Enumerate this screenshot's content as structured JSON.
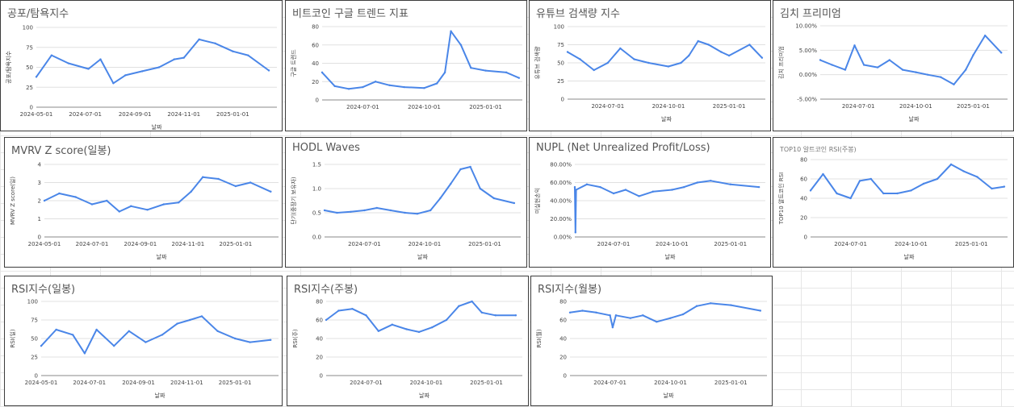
{
  "colors": {
    "line": "#4a86e8",
    "grid": "#e0e0e0",
    "border": "#3c3c3c",
    "title": "#555555"
  },
  "charts": [
    {
      "title": "공포/탐욕지수",
      "xlabel": "날짜",
      "ylabel": "공포/탐욕지수",
      "x_ticks": [
        "2024-05-01",
        "2024-07-01",
        "2024-09-01",
        "2024-11-01",
        "2025-01-01"
      ],
      "y_ticks": [
        "0",
        "25",
        "50",
        "75",
        "100"
      ],
      "chart_data": {
        "type": "line",
        "x": [
          "2024-05-01",
          "2024-05-20",
          "2024-06-10",
          "2024-07-05",
          "2024-07-20",
          "2024-08-05",
          "2024-08-20",
          "2024-09-10",
          "2024-10-01",
          "2024-10-20",
          "2024-11-01",
          "2024-11-20",
          "2024-12-10",
          "2025-01-01",
          "2025-01-20",
          "2025-02-15"
        ],
        "y": [
          38,
          65,
          55,
          48,
          60,
          30,
          40,
          45,
          50,
          60,
          62,
          85,
          80,
          70,
          65,
          46
        ],
        "ylim": [
          0,
          100
        ]
      }
    },
    {
      "title": "비트코인 구글 트렌드 지표",
      "xlabel": "",
      "ylabel": "구글 트렌드",
      "x_ticks": [
        "2024-07-01",
        "2024-10-01",
        "2025-01-01"
      ],
      "y_ticks": [
        "0",
        "20",
        "40",
        "60",
        "80"
      ],
      "chart_data": {
        "type": "line",
        "x": [
          "2024-05-01",
          "2024-05-20",
          "2024-06-10",
          "2024-07-01",
          "2024-07-20",
          "2024-08-10",
          "2024-09-01",
          "2024-10-01",
          "2024-10-20",
          "2024-11-01",
          "2024-11-10",
          "2024-11-25",
          "2024-12-10",
          "2025-01-01",
          "2025-02-01",
          "2025-02-20"
        ],
        "y": [
          30,
          15,
          12,
          14,
          20,
          16,
          14,
          13,
          18,
          30,
          75,
          60,
          35,
          32,
          30,
          24
        ],
        "ylim": [
          0,
          80
        ]
      }
    },
    {
      "title": "유튜브 검색량 지수",
      "xlabel": "날짜",
      "ylabel": "유튜브 검색량",
      "x_ticks": [
        "2024-07-01",
        "2024-10-01",
        "2025-01-01"
      ],
      "y_ticks": [
        "0",
        "25",
        "50",
        "75",
        "100"
      ],
      "chart_data": {
        "type": "line",
        "x": [
          "2024-05-01",
          "2024-05-20",
          "2024-06-10",
          "2024-07-01",
          "2024-07-20",
          "2024-08-10",
          "2024-09-01",
          "2024-10-01",
          "2024-10-20",
          "2024-11-01",
          "2024-11-15",
          "2024-12-01",
          "2024-12-20",
          "2025-01-01",
          "2025-02-01",
          "2025-02-20"
        ],
        "y": [
          65,
          55,
          40,
          50,
          70,
          55,
          50,
          45,
          50,
          60,
          80,
          75,
          65,
          60,
          75,
          57
        ],
        "ylim": [
          0,
          100
        ]
      }
    },
    {
      "title": "김치 프리미엄",
      "xlabel": "날짜",
      "ylabel": "김치 프리미엄",
      "x_ticks": [
        "2024-07-01",
        "2024-10-01",
        "2025-01-01"
      ],
      "y_ticks": [
        "-5.00%",
        "0.00%",
        "5.00%",
        "10.00%"
      ],
      "chart_data": {
        "type": "line",
        "x": [
          "2024-05-01",
          "2024-05-20",
          "2024-06-10",
          "2024-06-25",
          "2024-07-10",
          "2024-08-01",
          "2024-08-20",
          "2024-09-10",
          "2024-10-01",
          "2024-10-20",
          "2024-11-10",
          "2024-12-01",
          "2024-12-20",
          "2025-01-01",
          "2025-01-20",
          "2025-02-15"
        ],
        "y": [
          3.0,
          2.0,
          1.0,
          6.0,
          2.0,
          1.5,
          3.0,
          1.0,
          0.5,
          0.0,
          -0.5,
          -2.0,
          1.0,
          4.0,
          8.0,
          4.5
        ],
        "ylim": [
          -5,
          10
        ]
      }
    },
    {
      "title": "MVRV Z score(일봉)",
      "xlabel": "날짜",
      "ylabel": "MVRV Z score(일)",
      "x_ticks": [
        "2024-05-01",
        "2024-07-01",
        "2024-09-01",
        "2024-11-01",
        "2025-01-01"
      ],
      "y_ticks": [
        "0",
        "1",
        "2",
        "3",
        "4"
      ],
      "chart_data": {
        "type": "line",
        "x": [
          "2024-05-01",
          "2024-05-20",
          "2024-06-10",
          "2024-07-01",
          "2024-07-20",
          "2024-08-05",
          "2024-08-20",
          "2024-09-10",
          "2024-10-01",
          "2024-10-20",
          "2024-11-05",
          "2024-11-20",
          "2024-12-10",
          "2025-01-01",
          "2025-01-20",
          "2025-02-15"
        ],
        "y": [
          2.0,
          2.4,
          2.2,
          1.8,
          2.0,
          1.4,
          1.7,
          1.5,
          1.8,
          1.9,
          2.5,
          3.3,
          3.2,
          2.8,
          3.0,
          2.5
        ],
        "ylim": [
          0,
          4
        ]
      }
    },
    {
      "title": "HODL Waves",
      "xlabel": "날짜",
      "ylabel": "단기(중장기 보유자)",
      "x_ticks": [
        "2024-07-01",
        "2024-10-01",
        "2025-01-01"
      ],
      "y_ticks": [
        "0.0",
        "0.5",
        "1.0",
        "1.5"
      ],
      "chart_data": {
        "type": "line",
        "x": [
          "2024-05-01",
          "2024-05-20",
          "2024-06-10",
          "2024-07-01",
          "2024-07-20",
          "2024-08-10",
          "2024-09-01",
          "2024-09-20",
          "2024-10-10",
          "2024-10-25",
          "2024-11-10",
          "2024-11-25",
          "2024-12-10",
          "2024-12-25",
          "2025-01-15",
          "2025-02-15"
        ],
        "y": [
          0.55,
          0.5,
          0.52,
          0.55,
          0.6,
          0.55,
          0.5,
          0.48,
          0.55,
          0.8,
          1.1,
          1.4,
          1.45,
          1.0,
          0.8,
          0.7
        ],
        "ylim": [
          0,
          1.5
        ]
      }
    },
    {
      "title": "NUPL (Net Unrealized Profit/Loss)",
      "xlabel": "날짜",
      "ylabel": "미실현손익",
      "x_ticks": [
        "2024-07-01",
        "2024-10-01",
        "2025-01-01"
      ],
      "y_ticks": [
        "0.00%",
        "20.00%",
        "40.00%",
        "60.00%",
        "80.00%"
      ],
      "chart_data": {
        "type": "line",
        "x": [
          "2024-05-01",
          "2024-05-02",
          "2024-05-03",
          "2024-05-20",
          "2024-06-10",
          "2024-07-01",
          "2024-07-20",
          "2024-08-10",
          "2024-09-01",
          "2024-10-01",
          "2024-10-20",
          "2024-11-10",
          "2024-12-01",
          "2025-01-01",
          "2025-02-15"
        ],
        "y": [
          55,
          5,
          52,
          58,
          55,
          48,
          52,
          45,
          50,
          52,
          55,
          60,
          62,
          58,
          55
        ],
        "ylim": [
          0,
          80
        ]
      }
    },
    {
      "title": "TOP10 알트코인 RSI(주봉)",
      "xlabel": "날짜",
      "ylabel": "TOP10 알트코인 RSI",
      "x_ticks": [
        "2024-07-01",
        "2024-10-01",
        "2025-01-01"
      ],
      "y_ticks": [
        "0",
        "20",
        "40",
        "60",
        "80"
      ],
      "chart_data": {
        "type": "line",
        "x": [
          "2024-05-01",
          "2024-05-20",
          "2024-06-10",
          "2024-07-01",
          "2024-07-15",
          "2024-08-01",
          "2024-08-20",
          "2024-09-10",
          "2024-10-01",
          "2024-10-20",
          "2024-11-10",
          "2024-12-01",
          "2024-12-20",
          "2025-01-10",
          "2025-02-01",
          "2025-02-20"
        ],
        "y": [
          48,
          65,
          45,
          40,
          58,
          60,
          45,
          45,
          48,
          55,
          60,
          75,
          68,
          62,
          50,
          52
        ],
        "ylim": [
          0,
          80
        ]
      }
    },
    {
      "title": "RSI지수(일봉)",
      "xlabel": "날짜",
      "ylabel": "RSI(일)",
      "x_ticks": [
        "2024-05-01",
        "2024-07-01",
        "2024-09-01",
        "2024-11-01",
        "2025-01-01"
      ],
      "y_ticks": [
        "0",
        "25",
        "50",
        "75",
        "100"
      ],
      "chart_data": {
        "type": "line",
        "x": [
          "2024-05-01",
          "2024-05-20",
          "2024-06-10",
          "2024-06-25",
          "2024-07-10",
          "2024-08-01",
          "2024-08-20",
          "2024-09-10",
          "2024-10-01",
          "2024-10-20",
          "2024-11-05",
          "2024-11-20",
          "2024-12-10",
          "2025-01-01",
          "2025-01-20",
          "2025-02-15"
        ],
        "y": [
          40,
          62,
          55,
          30,
          62,
          40,
          60,
          45,
          55,
          70,
          75,
          80,
          60,
          50,
          45,
          48
        ],
        "ylim": [
          0,
          100
        ]
      }
    },
    {
      "title": "RSI지수(주봉)",
      "xlabel": "날짜",
      "ylabel": "RSI(주)",
      "x_ticks": [
        "2024-07-01",
        "2024-10-01",
        "2025-01-01"
      ],
      "y_ticks": [
        "0",
        "20",
        "40",
        "60",
        "80"
      ],
      "chart_data": {
        "type": "line",
        "x": [
          "2024-05-01",
          "2024-05-20",
          "2024-06-10",
          "2024-07-01",
          "2024-07-20",
          "2024-08-10",
          "2024-09-01",
          "2024-09-20",
          "2024-10-10",
          "2024-11-01",
          "2024-11-20",
          "2024-12-10",
          "2024-12-25",
          "2025-01-15",
          "2025-02-15"
        ],
        "y": [
          60,
          70,
          72,
          65,
          48,
          55,
          50,
          47,
          52,
          60,
          75,
          80,
          68,
          65,
          65
        ],
        "ylim": [
          0,
          80
        ]
      }
    },
    {
      "title": "RSI지수(월봉)",
      "xlabel": "날짜",
      "ylabel": "RSI(월)",
      "x_ticks": [
        "2024-07-01",
        "2024-10-01",
        "2025-01-01"
      ],
      "y_ticks": [
        "0",
        "20",
        "40",
        "60",
        "80"
      ],
      "chart_data": {
        "type": "line",
        "x": [
          "2024-05-01",
          "2024-05-20",
          "2024-06-10",
          "2024-07-01",
          "2024-07-05",
          "2024-07-10",
          "2024-08-01",
          "2024-08-20",
          "2024-09-10",
          "2024-10-01",
          "2024-10-20",
          "2024-11-10",
          "2024-12-01",
          "2025-01-01",
          "2025-02-15"
        ],
        "y": [
          68,
          70,
          68,
          65,
          52,
          65,
          62,
          65,
          58,
          62,
          66,
          75,
          78,
          76,
          70
        ],
        "ylim": [
          0,
          80
        ]
      }
    }
  ]
}
